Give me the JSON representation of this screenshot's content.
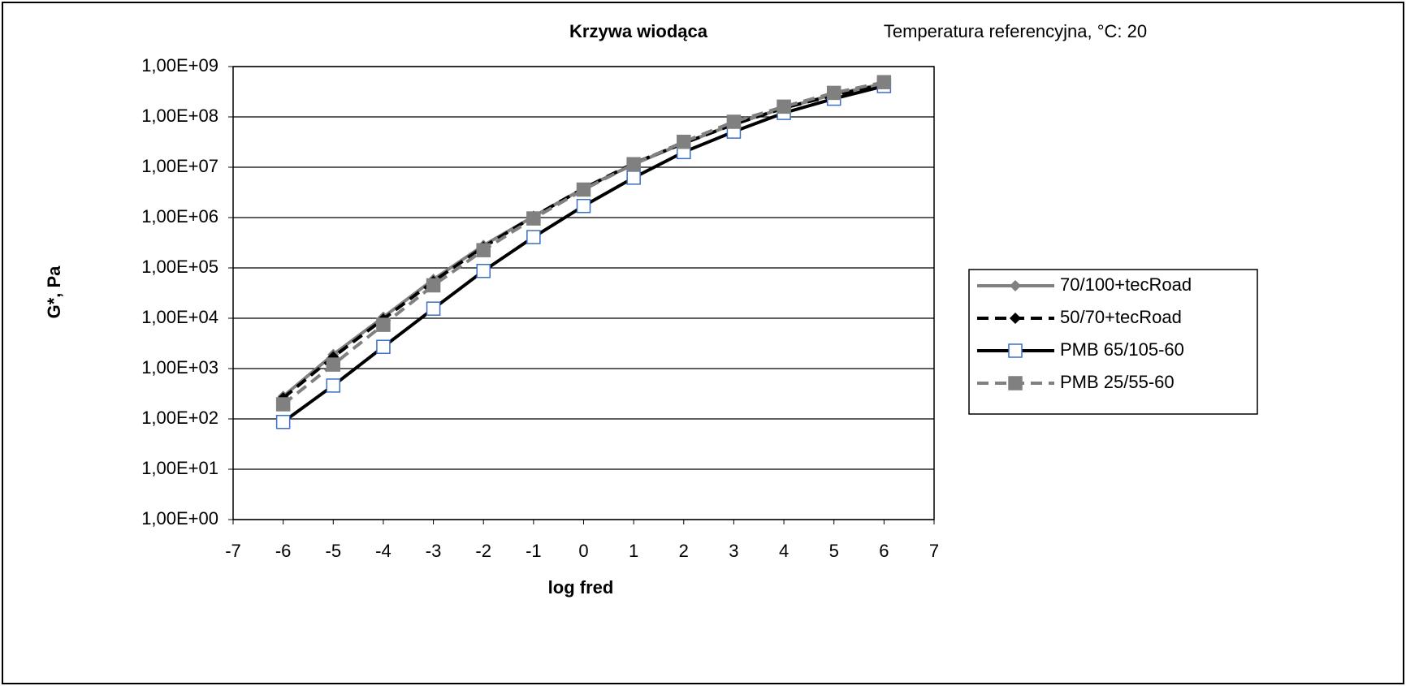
{
  "chart_data": {
    "type": "line",
    "title": "Krzywa wiodąca",
    "subtitle": "Temperatura referencyjna, °C: 20",
    "y_label": "G*, Pa",
    "x_label": "log fred",
    "x": [
      -6,
      -5,
      -4,
      -3,
      -2,
      -1,
      0,
      1,
      2,
      3,
      4,
      5,
      6
    ],
    "xlim": [
      -7,
      7
    ],
    "xticks": [
      -7,
      -6,
      -5,
      -4,
      -3,
      -2,
      -1,
      0,
      1,
      2,
      3,
      4,
      5,
      6,
      7
    ],
    "ylim": [
      1,
      1000000000
    ],
    "y_log": true,
    "grid": true,
    "legend": "right",
    "yticks": [
      {
        "value": 1,
        "label": "1,00E+00"
      },
      {
        "value": 10,
        "label": "1,00E+01"
      },
      {
        "value": 100,
        "label": "1,00E+02"
      },
      {
        "value": 1000,
        "label": "1,00E+03"
      },
      {
        "value": 10000,
        "label": "1,00E+04"
      },
      {
        "value": 100000,
        "label": "1,00E+05"
      },
      {
        "value": 1000000,
        "label": "1,00E+06"
      },
      {
        "value": 10000000,
        "label": "1,00E+07"
      },
      {
        "value": 100000000,
        "label": "1,00E+08"
      },
      {
        "value": 1000000000,
        "label": "1,00E+09"
      }
    ],
    "series": [
      {
        "name": "70/100+tecRoad",
        "color": "#808080",
        "dash": "solid",
        "marker": "diamond",
        "marker_fill": "#808080",
        "values": [
          280,
          1900,
          10500,
          59000,
          280000,
          1050000,
          3800000,
          11500000,
          30000000,
          72000000,
          150000000,
          280000000,
          460000000
        ]
      },
      {
        "name": "50/70+tecRoad",
        "color": "#000000",
        "dash": "dashed",
        "marker": "diamond",
        "marker_fill": "#000000",
        "values": [
          260,
          1700,
          9600,
          54000,
          260000,
          1050000,
          3800000,
          12000000,
          30000000,
          71000000,
          150000000,
          270000000,
          440000000
        ]
      },
      {
        "name": "PMB 65/105-60",
        "color": "#000000",
        "dash": "solid",
        "marker": "square",
        "marker_fill": "#ffffff",
        "values": [
          87,
          460,
          2700,
          15500,
          87000,
          410000,
          1700000,
          6200000,
          20000000,
          51000000,
          120000000,
          230000000,
          410000000
        ]
      },
      {
        "name": "PMB 25/55-60",
        "color": "#808080",
        "dash": "dashed",
        "marker": "square",
        "marker_fill": "#808080",
        "values": [
          195,
          1200,
          7400,
          45000,
          225000,
          960000,
          3600000,
          11500000,
          32000000,
          80000000,
          160000000,
          300000000,
          490000000
        ]
      }
    ]
  }
}
